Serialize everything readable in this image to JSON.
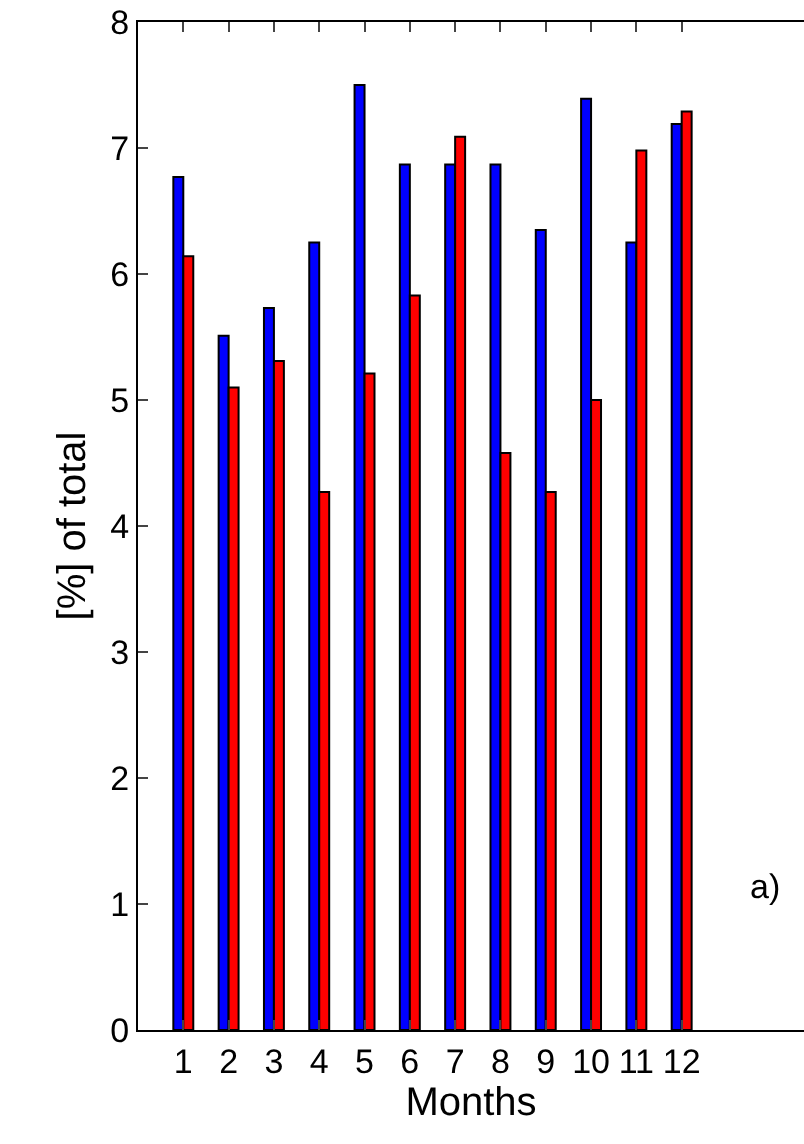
{
  "chart_data": {
    "type": "bar",
    "xlabel": "Months",
    "ylabel": "[%] of total",
    "x": [
      1,
      2,
      3,
      4,
      5,
      6,
      7,
      8,
      9,
      10,
      11,
      12
    ],
    "series": [
      {
        "color": "#0000ff",
        "values": [
          6.77,
          5.51,
          5.73,
          6.25,
          7.5,
          6.87,
          6.87,
          6.87,
          6.35,
          7.39,
          6.25,
          7.19
        ]
      },
      {
        "color": "#ff0000",
        "values": [
          6.14,
          5.1,
          5.31,
          4.27,
          5.21,
          5.83,
          7.09,
          4.58,
          4.27,
          5.0,
          6.98,
          7.29
        ]
      }
    ],
    "xlim": [
      0,
      14.7
    ],
    "xticks": [
      1,
      2,
      3,
      4,
      5,
      6,
      7,
      8,
      9,
      10,
      11,
      12
    ],
    "ylim": [
      0,
      8
    ],
    "yticks": [
      0,
      1,
      2,
      3,
      4,
      5,
      6,
      7,
      8
    ],
    "annotations": [
      "a)"
    ]
  }
}
